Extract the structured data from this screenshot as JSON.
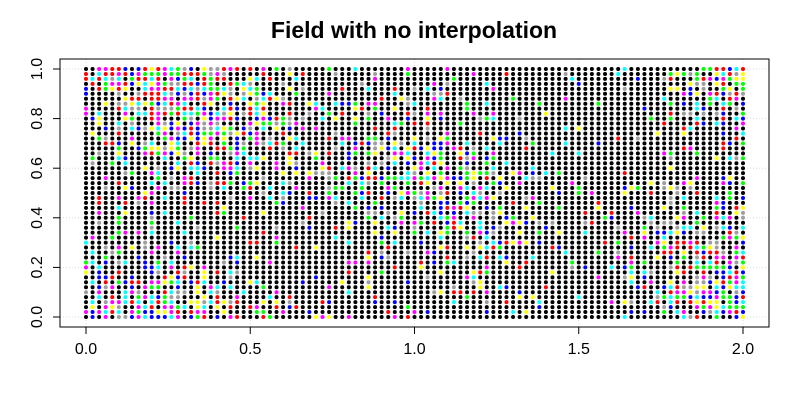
{
  "chart_data": {
    "type": "scatter",
    "title": "Field with no interpolation",
    "xlabel": "",
    "ylabel": "",
    "xlim": [
      0,
      2
    ],
    "ylim": [
      0,
      1
    ],
    "x_ticks": [
      0,
      0.5,
      1,
      1.5,
      2
    ],
    "x_tick_labels": [
      "0.0",
      "0.5",
      "1.0",
      "1.5",
      "2.0"
    ],
    "y_ticks": [
      0,
      0.2,
      0.4,
      0.6,
      0.8,
      1
    ],
    "y_tick_labels": [
      "0.0",
      "0.2",
      "0.4",
      "0.6",
      "0.8",
      "1.0"
    ],
    "grid": true,
    "grid_spacing_x": 0.02,
    "grid_spacing_y": 0.02,
    "point_color_palette": [
      "#000000",
      "#ff0000",
      "#00ff00",
      "#0000ff",
      "#00ffff",
      "#ff00ff",
      "#ffff00",
      "#9e9e9e"
    ],
    "background_point_color": "#000000"
  }
}
